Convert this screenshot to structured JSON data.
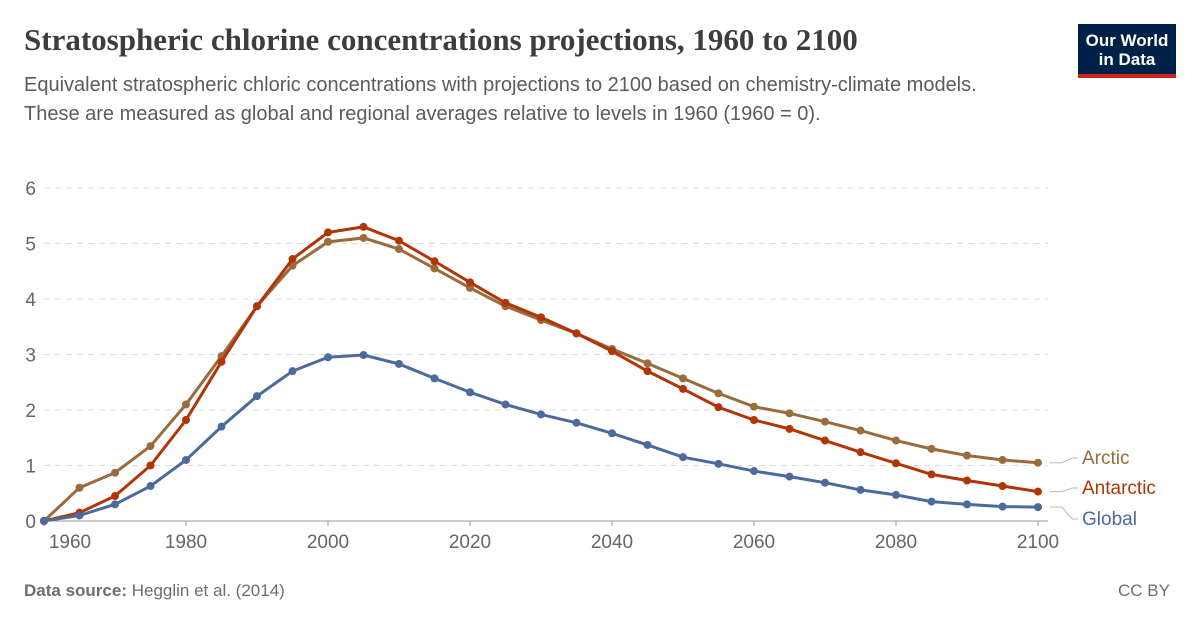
{
  "header": {
    "title": "Stratospheric chlorine concentrations projections, 1960 to 2100",
    "subtitle": "Equivalent stratospheric chloric concentrations with projections to 2100 based on chemistry-climate models. These are measured as global and regional averages relative to levels in 1960 (1960 = 0).",
    "logo": "Our World in Data"
  },
  "footer": {
    "source_label": "Data source:",
    "source": "Hegglin et al. (2014)",
    "license": "CC BY"
  },
  "chart_data": {
    "type": "line",
    "title": "Stratospheric chlorine concentrations projections, 1960 to 2100",
    "xlim": [
      1960,
      2100
    ],
    "ylim": [
      0,
      6
    ],
    "xticks": [
      1960,
      1980,
      2000,
      2020,
      2040,
      2060,
      2080,
      2100
    ],
    "yticks": [
      0,
      1,
      2,
      3,
      4,
      5,
      6
    ],
    "grid": "horizontal dashed",
    "legend": "right, end-of-line labels",
    "x": [
      1960,
      1965,
      1970,
      1975,
      1980,
      1985,
      1990,
      1995,
      2000,
      2005,
      2010,
      2015,
      2020,
      2025,
      2030,
      2035,
      2040,
      2045,
      2050,
      2055,
      2060,
      2065,
      2070,
      2075,
      2080,
      2085,
      2090,
      2095,
      2100
    ],
    "series": [
      {
        "name": "Arctic",
        "color": "#9a6b3c",
        "values": [
          0,
          0.6,
          0.87,
          1.35,
          2.1,
          2.97,
          3.87,
          4.6,
          5.03,
          5.1,
          4.9,
          4.55,
          4.2,
          3.87,
          3.62,
          3.38,
          3.1,
          2.84,
          2.57,
          2.3,
          2.06,
          1.94,
          1.79,
          1.63,
          1.45,
          1.3,
          1.18,
          1.1,
          1.05
        ]
      },
      {
        "name": "Antarctic",
        "color": "#b13507",
        "values": [
          0,
          0.15,
          0.45,
          1.0,
          1.82,
          2.87,
          3.87,
          4.72,
          5.2,
          5.3,
          5.05,
          4.68,
          4.3,
          3.93,
          3.67,
          3.38,
          3.06,
          2.7,
          2.38,
          2.05,
          1.82,
          1.66,
          1.45,
          1.24,
          1.04,
          0.84,
          0.73,
          0.63,
          0.53
        ]
      },
      {
        "name": "Global",
        "color": "#4c6a9c",
        "values": [
          0,
          0.1,
          0.3,
          0.63,
          1.1,
          1.7,
          2.25,
          2.7,
          2.95,
          2.99,
          2.83,
          2.57,
          2.32,
          2.1,
          1.92,
          1.77,
          1.58,
          1.37,
          1.15,
          1.03,
          0.9,
          0.8,
          0.69,
          0.56,
          0.47,
          0.35,
          0.3,
          0.26,
          0.25
        ]
      }
    ]
  }
}
